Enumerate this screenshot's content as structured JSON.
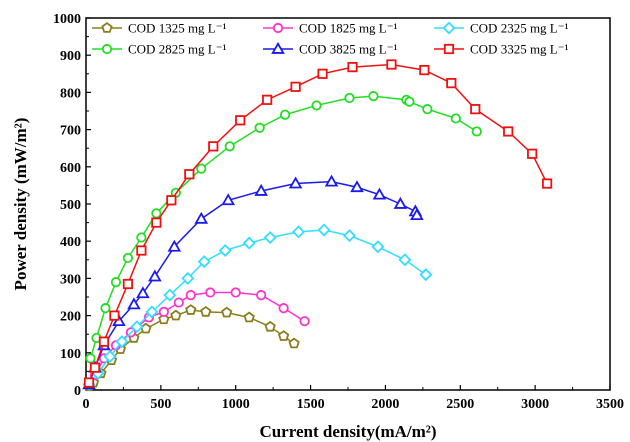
{
  "chart_data": {
    "type": "scatter",
    "title": "",
    "xlabel": "Current density(mA/m²)",
    "ylabel": "Power density (mW/m²)",
    "xlim": [
      0,
      3500
    ],
    "ylim": [
      0,
      1000
    ],
    "x_ticks": [
      "0",
      "500",
      "1000",
      "1500",
      "2000",
      "2500",
      "3000",
      "3500"
    ],
    "y_ticks": [
      "0",
      "100",
      "200",
      "300",
      "400",
      "500",
      "600",
      "700",
      "800",
      "900",
      "1000"
    ],
    "grid": false,
    "legend_position": "top, three columns inside plot",
    "series": [
      {
        "name": "COD 1325 mg L⁻¹",
        "color": "#8b7d1e",
        "marker": "pentagon",
        "x": [
          20,
          50,
          100,
          170,
          230,
          320,
          400,
          520,
          600,
          700,
          800,
          940,
          1090,
          1230,
          1320,
          1390
        ],
        "y": [
          10,
          20,
          45,
          80,
          110,
          140,
          165,
          190,
          200,
          215,
          210,
          208,
          195,
          170,
          145,
          125
        ]
      },
      {
        "name": "COD 1825 mg L⁻¹",
        "color": "#ff33cc",
        "marker": "circle",
        "x": [
          20,
          60,
          120,
          200,
          300,
          420,
          520,
          620,
          700,
          830,
          1000,
          1170,
          1320,
          1460
        ],
        "y": [
          15,
          40,
          85,
          120,
          155,
          195,
          210,
          235,
          255,
          262,
          262,
          255,
          220,
          185
        ]
      },
      {
        "name": "COD 2325 mg L⁻¹",
        "color": "#33ddff",
        "marker": "diamond",
        "x": [
          20,
          80,
          160,
          240,
          340,
          440,
          560,
          680,
          790,
          930,
          1090,
          1230,
          1420,
          1590,
          1760,
          1950,
          2130,
          2270
        ],
        "y": [
          15,
          45,
          90,
          130,
          170,
          210,
          255,
          300,
          345,
          375,
          395,
          410,
          425,
          430,
          415,
          385,
          350,
          310
        ]
      },
      {
        "name": "COD 2825 mg L⁻¹",
        "color": "#22dd22",
        "marker": "circle",
        "x": [
          30,
          70,
          130,
          200,
          280,
          370,
          470,
          600,
          770,
          960,
          1160,
          1330,
          1540,
          1760,
          1920,
          2140,
          2160,
          2280,
          2470,
          2610
        ],
        "y": [
          85,
          140,
          220,
          290,
          355,
          410,
          475,
          530,
          595,
          655,
          705,
          740,
          765,
          785,
          790,
          780,
          775,
          755,
          730,
          695
        ]
      },
      {
        "name": "COD 3825 mg L⁻¹",
        "color": "#1a1aee",
        "marker": "triangle",
        "x": [
          20,
          60,
          120,
          220,
          320,
          380,
          460,
          590,
          770,
          950,
          1170,
          1400,
          1640,
          1810,
          1960,
          2100,
          2200,
          2210
        ],
        "y": [
          15,
          60,
          120,
          185,
          230,
          260,
          305,
          385,
          460,
          510,
          535,
          555,
          560,
          545,
          525,
          500,
          480,
          470
        ]
      },
      {
        "name": "COD 3325 mg L⁻¹",
        "color": "#ee1111",
        "marker": "square",
        "x": [
          20,
          60,
          120,
          190,
          280,
          370,
          470,
          570,
          690,
          850,
          1030,
          1210,
          1400,
          1580,
          1780,
          2040,
          2260,
          2440,
          2600,
          2820,
          2980,
          3080
        ],
        "y": [
          20,
          60,
          130,
          200,
          285,
          375,
          450,
          510,
          580,
          655,
          725,
          780,
          815,
          850,
          868,
          875,
          860,
          825,
          755,
          695,
          635,
          555
        ]
      }
    ]
  }
}
